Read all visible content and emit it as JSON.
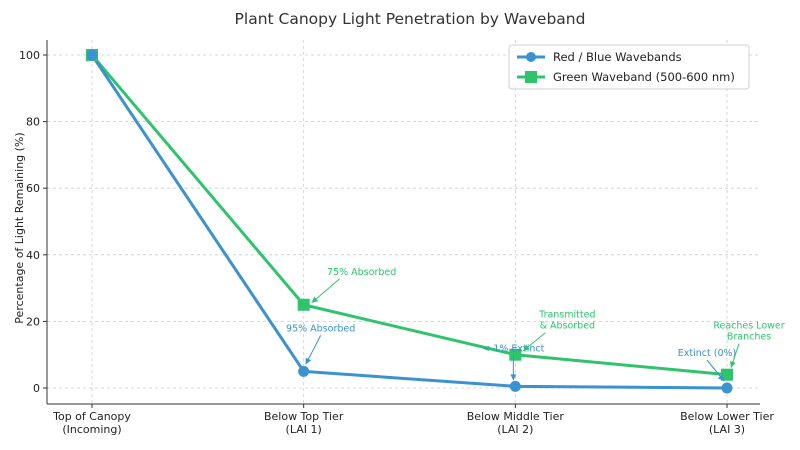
{
  "chart_data": {
    "type": "line",
    "title": "Plant Canopy Light Penetration by Waveband",
    "xlabel": "",
    "ylabel": "Percentage of Light Remaining (%)",
    "categories": [
      [
        "Top of Canopy",
        "(Incoming)"
      ],
      [
        "Below Top Tier",
        "(LAI 1)"
      ],
      [
        "Below Middle Tier",
        "(LAI 2)"
      ],
      [
        "Below Lower Tier",
        "(LAI 3)"
      ]
    ],
    "ylim": [
      0,
      100
    ],
    "yticks": [
      0,
      20,
      40,
      60,
      80,
      100
    ],
    "grid": true,
    "legend_position": "top-right",
    "series": [
      {
        "name": "Red / Blue Wavebands",
        "values": [
          100,
          5,
          0.5,
          0
        ],
        "color": "#3b92d0",
        "marker": "circle",
        "annotations": [
          {
            "index": 1,
            "lines": [
              "95% Absorbed"
            ]
          },
          {
            "index": 2,
            "lines": [
              "< 1% Extinct"
            ]
          },
          {
            "index": 3,
            "lines": [
              "Extinct (0%)"
            ]
          }
        ]
      },
      {
        "name": "Green Waveband (500-600 nm)",
        "values": [
          100,
          25,
          10,
          4
        ],
        "color": "#2fc46c",
        "marker": "square",
        "annotations": [
          {
            "index": 1,
            "lines": [
              "75% Absorbed"
            ]
          },
          {
            "index": 2,
            "lines": [
              "Transmitted",
              "& Absorbed"
            ]
          },
          {
            "index": 3,
            "lines": [
              "Reaches Lower",
              "Branches"
            ]
          }
        ]
      }
    ]
  }
}
